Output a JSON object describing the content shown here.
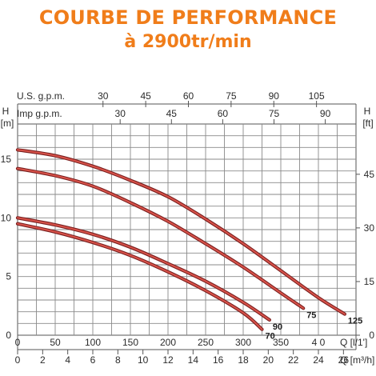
{
  "chart_data": {
    "type": "line",
    "title": "COURBE DE PERFORMANCE",
    "subtitle": "à 2900tr/min",
    "axes": {
      "left": {
        "label": "H",
        "unit": "[m]",
        "min": 0,
        "max": 18,
        "ticks": [
          0,
          5,
          10,
          15
        ]
      },
      "right": {
        "label": "H",
        "unit": "[ft]",
        "min": 0,
        "max": 59.06,
        "ticks": [
          0,
          15,
          30,
          45
        ]
      },
      "bottom_lmin": {
        "label": "Q [l/1']",
        "min": 0,
        "max": 450,
        "ticks": [
          0,
          50,
          100,
          150,
          200,
          250,
          300,
          350,
          400
        ]
      },
      "bottom_m3h": {
        "label": "Q [m³/h]",
        "ticks": [
          0,
          2,
          4,
          6,
          8,
          10,
          12,
          14,
          16,
          18,
          20,
          22,
          24,
          26
        ]
      },
      "top_us": {
        "label": "U.S.  g.p.m.",
        "ticks": [
          30,
          45,
          60,
          75,
          90,
          105
        ]
      },
      "top_imp": {
        "label": "Imp  g.p.m.",
        "ticks": [
          30,
          45,
          60,
          75,
          90
        ]
      }
    },
    "tick_text": {
      "bottom_lmin": [
        "0",
        "50",
        "100",
        "150",
        "200",
        "250",
        "300",
        "350",
        "4 0"
      ]
    },
    "grid": true,
    "series": [
      {
        "name": "125",
        "points": [
          [
            0,
            15.8
          ],
          [
            50,
            15.3
          ],
          [
            100,
            14.4
          ],
          [
            150,
            13.2
          ],
          [
            200,
            11.8
          ],
          [
            250,
            9.9
          ],
          [
            300,
            7.8
          ],
          [
            350,
            5.5
          ],
          [
            400,
            3.2
          ],
          [
            435,
            1.8
          ]
        ]
      },
      {
        "name": "75",
        "points": [
          [
            0,
            14.2
          ],
          [
            50,
            13.6
          ],
          [
            100,
            12.7
          ],
          [
            150,
            11.3
          ],
          [
            200,
            9.7
          ],
          [
            250,
            7.8
          ],
          [
            300,
            5.8
          ],
          [
            350,
            3.6
          ],
          [
            380,
            2.3
          ]
        ]
      },
      {
        "name": "90",
        "points": [
          [
            0,
            10.0
          ],
          [
            50,
            9.4
          ],
          [
            100,
            8.6
          ],
          [
            150,
            7.5
          ],
          [
            200,
            6.1
          ],
          [
            250,
            4.6
          ],
          [
            300,
            2.8
          ],
          [
            335,
            1.3
          ]
        ]
      },
      {
        "name": "70",
        "points": [
          [
            0,
            9.5
          ],
          [
            50,
            8.8
          ],
          [
            100,
            7.9
          ],
          [
            150,
            6.8
          ],
          [
            200,
            5.4
          ],
          [
            250,
            3.8
          ],
          [
            300,
            1.9
          ],
          [
            325,
            0.5
          ]
        ]
      }
    ]
  }
}
